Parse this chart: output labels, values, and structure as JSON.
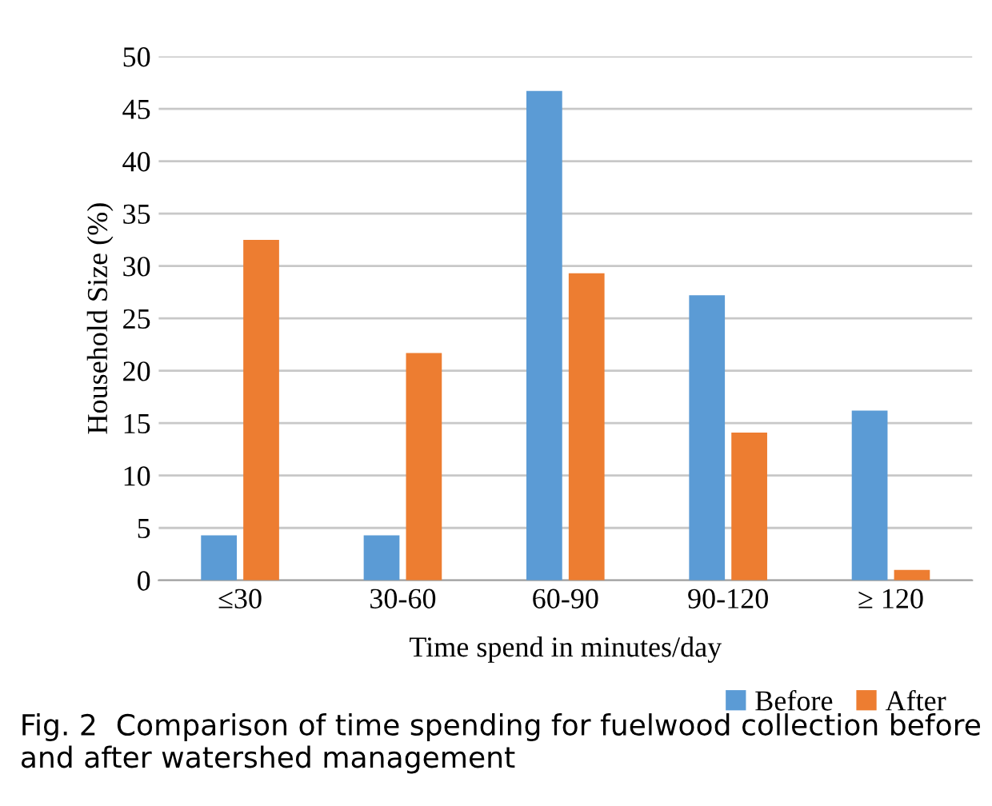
{
  "chart_data": {
    "type": "bar",
    "xlabel": "Time spend in minutes/day",
    "ylabel": "Household Size (%)",
    "categories": [
      "≤30",
      "30-60",
      "60-90",
      "90-120",
      "≥ 120"
    ],
    "series": [
      {
        "name": "Before",
        "color": "#5b9bd5",
        "values": [
          4.3,
          4.3,
          46.7,
          27.2,
          16.2
        ]
      },
      {
        "name": "After",
        "color": "#ed7d31",
        "values": [
          32.5,
          21.7,
          29.3,
          14.1,
          1.0
        ]
      }
    ],
    "ylim": [
      0,
      50
    ],
    "yticks": [
      0,
      5,
      10,
      15,
      20,
      25,
      30,
      35,
      40,
      45,
      50
    ],
    "grid": "y",
    "legend": "bottom right",
    "annotations": [
      "Fig. 2  Comparison of time spending for fuelwood collection before and after watershed management"
    ]
  }
}
